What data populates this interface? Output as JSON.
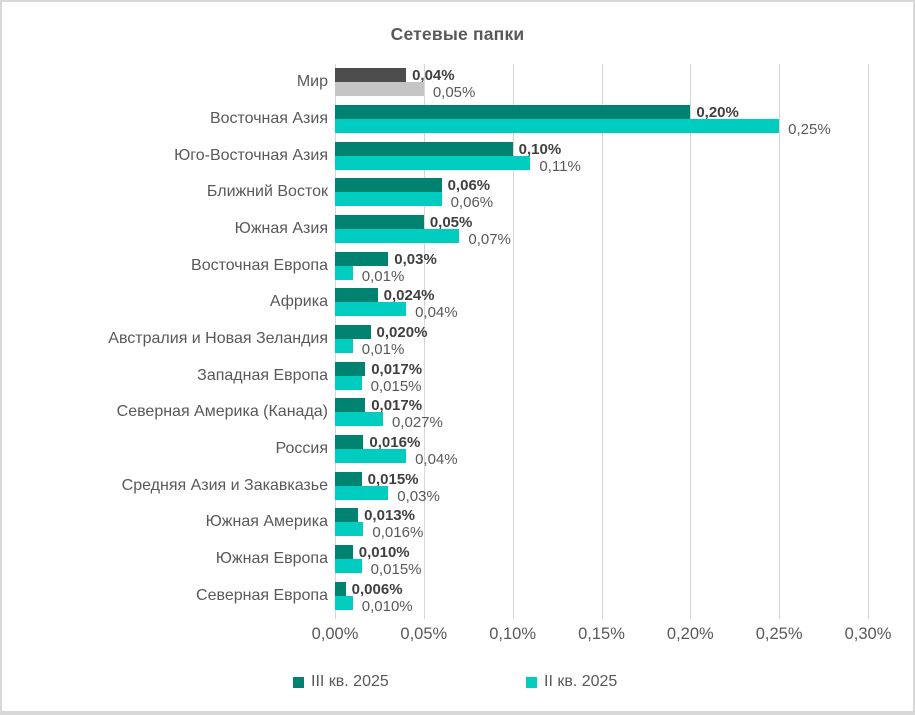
{
  "window": {
    "background": "#ffffff",
    "border_color": "#d8d8d8"
  },
  "chart_data": {
    "type": "bar",
    "orientation": "horizontal",
    "title": "Сетевые папки",
    "title_color": "#595959",
    "grid": true,
    "legend_position": "bottom",
    "xlim": [
      0,
      0.3
    ],
    "x_ticks": [
      "0,00%",
      "0,05%",
      "0,10%",
      "0,15%",
      "0,20%",
      "0,25%",
      "0,30%"
    ],
    "categories": [
      "Мир",
      "Восточная Азия",
      "Юго-Восточная Азия",
      "Ближний Восток",
      "Южная Азия",
      "Восточная Европа",
      "Африка",
      "Австралия и Новая Зеландия",
      "Западная Европа",
      "Северная Америка (Канада)",
      "Россия",
      "Средняя Азия и Закавказье",
      "Южная Америка",
      "Южная Европа",
      "Северная Европа"
    ],
    "series": [
      {
        "name": "III кв. 2025",
        "color": "#008270",
        "world_color": "#4d4d4d",
        "values": [
          0.04,
          0.2,
          0.1,
          0.06,
          0.05,
          0.03,
          0.024,
          0.02,
          0.017,
          0.017,
          0.016,
          0.015,
          0.013,
          0.01,
          0.006
        ],
        "labels": [
          "0,04%",
          "0,20%",
          "0,10%",
          "0,06%",
          "0,05%",
          "0,03%",
          "0,024%",
          "0,020%",
          "0,017%",
          "0,017%",
          "0,016%",
          "0,015%",
          "0,013%",
          "0,010%",
          "0,006%"
        ]
      },
      {
        "name": "II кв. 2025",
        "color": "#00cdc0",
        "world_color": "#c5c5c5",
        "values": [
          0.05,
          0.25,
          0.11,
          0.06,
          0.07,
          0.01,
          0.04,
          0.01,
          0.015,
          0.027,
          0.04,
          0.03,
          0.016,
          0.015,
          0.01
        ],
        "labels": [
          "0,05%",
          "0,25%",
          "0,11%",
          "0,06%",
          "0,07%",
          "0,01%",
          "0,04%",
          "0,01%",
          "0,015%",
          "0,027%",
          "0,04%",
          "0,03%",
          "0,016%",
          "0,015%",
          "0,010%"
        ]
      }
    ]
  }
}
